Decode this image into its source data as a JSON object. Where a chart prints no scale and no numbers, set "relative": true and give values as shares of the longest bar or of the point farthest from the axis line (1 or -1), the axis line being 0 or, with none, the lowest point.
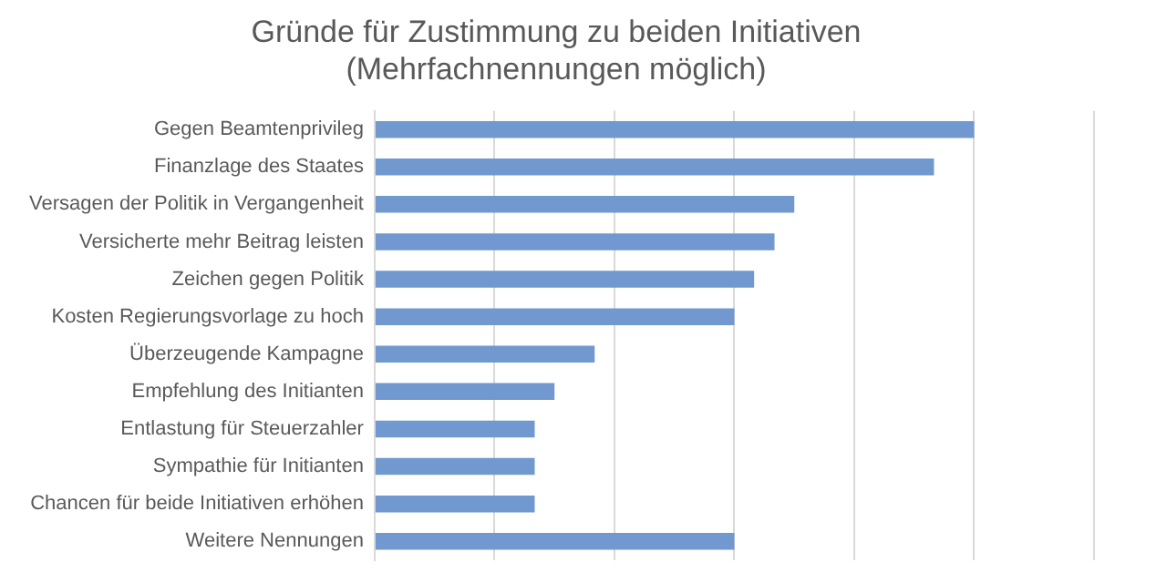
{
  "chart_data": {
    "type": "bar",
    "orientation": "horizontal",
    "relative": true,
    "title": "Gründe für Zustimmung zu beiden Initiativen\n(Mehrfachnennungen möglich)",
    "categories": [
      "Gegen Beamtenprivileg",
      "Finanzlage des Staates",
      "Versagen der Politik in Vergangenheit",
      "Versicherte mehr Beitrag leisten",
      "Zeichen gegen Politik",
      "Kosten Regierungsvorlage zu hoch",
      "Überzeugende Kampagne",
      "Empfehlung des Initianten",
      "Entlastung für Steuerzahler",
      "Sympathie für Initianten",
      "Chancen für beide Initiativen erhöhen",
      "Weitere Nennungen"
    ],
    "values": [
      1,
      0.933,
      0.7,
      0.667,
      0.633,
      0.6,
      0.367,
      0.3,
      0.267,
      0.267,
      0.267,
      0.6
    ],
    "color": "#7198cf",
    "grid": "x",
    "legend": false
  }
}
